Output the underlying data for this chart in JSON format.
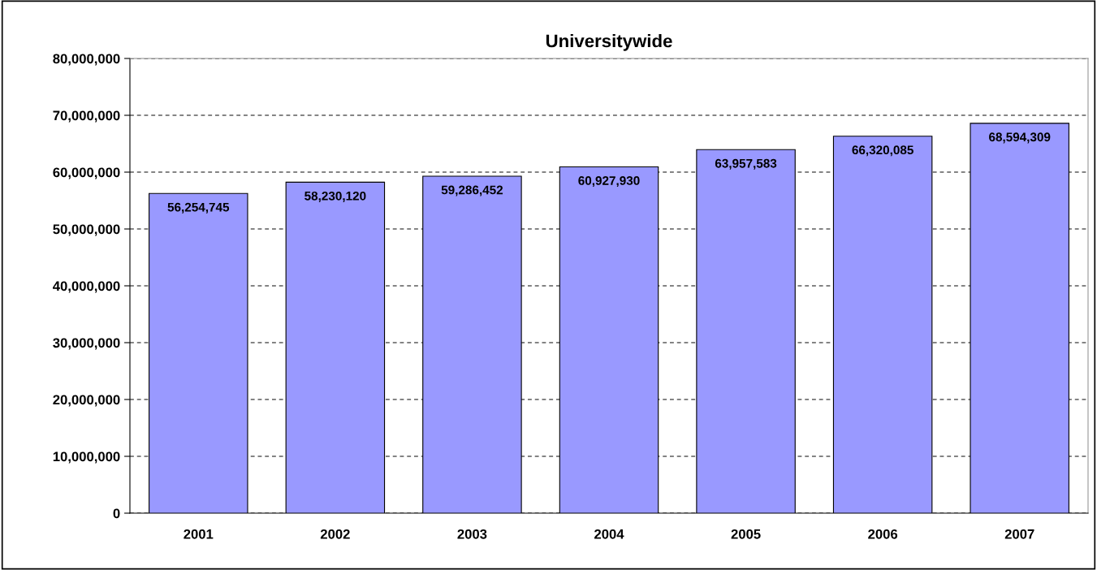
{
  "chart_data": {
    "type": "bar",
    "title": "Universitywide",
    "categories": [
      "2001",
      "2002",
      "2003",
      "2004",
      "2005",
      "2006",
      "2007"
    ],
    "values": [
      56254745,
      58230120,
      59286452,
      60927930,
      63957583,
      66320085,
      68594309
    ],
    "value_labels": [
      "56,254,745",
      "58,230,120",
      "59,286,452",
      "60,927,930",
      "63,957,583",
      "66,320,085",
      "68,594,309"
    ],
    "color": "#9999ff",
    "ylim": [
      0,
      80000000
    ],
    "yticks": [
      {
        "value": 0,
        "label": "0"
      },
      {
        "value": 10000000,
        "label": "10,000,000"
      },
      {
        "value": 20000000,
        "label": "20,000,000"
      },
      {
        "value": 30000000,
        "label": "30,000,000"
      },
      {
        "value": 40000000,
        "label": "40,000,000"
      },
      {
        "value": 50000000,
        "label": "50,000,000"
      },
      {
        "value": 60000000,
        "label": "60,000,000"
      },
      {
        "value": 70000000,
        "label": "70,000,000"
      },
      {
        "value": 80000000,
        "label": "80,000,000"
      }
    ],
    "grid": "y",
    "legend": false
  }
}
